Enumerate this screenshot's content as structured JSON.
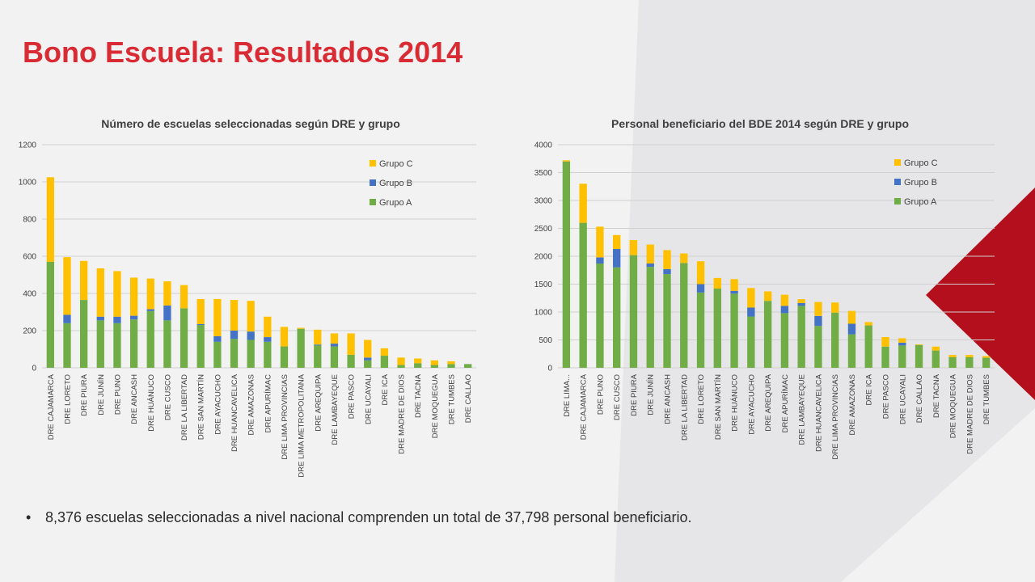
{
  "slide": {
    "title": "Bono Escuela: Resultados 2014",
    "bullet": "8,376 escuelas seleccionadas a nivel nacional comprenden un total de 37,798 personal beneficiario.",
    "colors": {
      "accent": "#d92b34",
      "grupo_a": "#70ad47",
      "grupo_b": "#4472c4",
      "grupo_c": "#ffc000",
      "dark_red": "#b30f1d"
    }
  },
  "chart_data": [
    {
      "type": "bar",
      "stacked": true,
      "title": "Número de escuelas seleccionadas según DRE y grupo",
      "xlabel": "",
      "ylabel": "",
      "ylim": [
        0,
        1200
      ],
      "yticks": [
        0,
        200,
        400,
        600,
        800,
        1000,
        1200
      ],
      "grid": true,
      "legend_position": "top-right",
      "categories": [
        "DRE CAJAMARCA",
        "DRE LORETO",
        "DRE PIURA",
        "DRE JUNÍN",
        "DRE PUNO",
        "DRE ANCASH",
        "DRE HUÁNUCO",
        "DRE CUSCO",
        "DRE LA LIBERTAD",
        "DRE SAN MARTÍN",
        "DRE AYACUCHO",
        "DRE HUANCAVELICA",
        "DRE AMAZONAS",
        "DRE APURÍMAC",
        "DRE LIMA PROVINCIAS",
        "DRE LIMA METROPOLITANA",
        "DRE AREQUIPA",
        "DRE LAMBAYEQUE",
        "DRE PASCO",
        "DRE UCAYALI",
        "DRE ICA",
        "DRE MADRE DE DIOS",
        "DRE TACNA",
        "DRE MOQUEGUA",
        "DRE TUMBES",
        "DRE CALLAO"
      ],
      "series": [
        {
          "name": "Grupo A",
          "values": [
            570,
            240,
            365,
            255,
            240,
            260,
            305,
            255,
            320,
            230,
            140,
            155,
            150,
            140,
            115,
            210,
            120,
            115,
            70,
            40,
            65,
            15,
            25,
            15,
            20,
            20
          ]
        },
        {
          "name": "Grupo B",
          "values": [
            0,
            45,
            0,
            20,
            35,
            20,
            10,
            80,
            0,
            5,
            30,
            45,
            45,
            25,
            0,
            0,
            5,
            15,
            0,
            15,
            0,
            0,
            0,
            0,
            0,
            0
          ]
        },
        {
          "name": "Grupo C",
          "values": [
            455,
            310,
            210,
            260,
            245,
            205,
            165,
            130,
            125,
            135,
            200,
            165,
            165,
            110,
            105,
            5,
            80,
            55,
            115,
            95,
            40,
            40,
            25,
            25,
            15,
            0
          ]
        }
      ]
    },
    {
      "type": "bar",
      "stacked": true,
      "title": "Personal beneficiario del BDE 2014 según DRE y grupo",
      "xlabel": "",
      "ylabel": "",
      "ylim": [
        0,
        4000
      ],
      "yticks": [
        0,
        500,
        1000,
        1500,
        2000,
        2500,
        3000,
        3500,
        4000
      ],
      "grid": true,
      "legend_position": "top-right",
      "categories": [
        "DRE LIMA...",
        "DRE CAJAMARCA",
        "DRE PUNO",
        "DRE CUSCO",
        "DRE PIURA",
        "DRE JUNÍN",
        "DRE ANCASH",
        "DRE LA LIBERTAD",
        "DRE LORETO",
        "DRE SAN MARTÍN",
        "DRE HUÁNUCO",
        "DRE AYACUCHO",
        "DRE AREQUIPA",
        "DRE APURÍMAC",
        "DRE LAMBAYEQUE",
        "DRE HUANCAVELICA",
        "DRE LIMA PROVINCIAS",
        "DRE AMAZONAS",
        "DRE ICA",
        "DRE PASCO",
        "DRE UCAYALI",
        "DRE CALLAO",
        "DRE TACNA",
        "DRE MOQUEGUA",
        "DRE MADRE DE DIOS",
        "DRE TUMBES"
      ],
      "series": [
        {
          "name": "Grupo A",
          "values": [
            3700,
            2600,
            1870,
            1800,
            2020,
            1810,
            1680,
            1880,
            1350,
            1420,
            1330,
            920,
            1200,
            980,
            1110,
            750,
            990,
            600,
            760,
            380,
            400,
            410,
            310,
            190,
            190,
            180
          ]
        },
        {
          "name": "Grupo B",
          "values": [
            0,
            0,
            110,
            330,
            0,
            60,
            90,
            0,
            150,
            0,
            50,
            160,
            0,
            130,
            50,
            180,
            0,
            190,
            0,
            0,
            50,
            0,
            0,
            0,
            0,
            0
          ]
        },
        {
          "name": "Grupo C",
          "values": [
            20,
            700,
            550,
            250,
            270,
            340,
            340,
            170,
            410,
            190,
            210,
            350,
            170,
            200,
            70,
            250,
            180,
            230,
            60,
            170,
            80,
            10,
            70,
            40,
            40,
            30
          ]
        }
      ]
    }
  ]
}
